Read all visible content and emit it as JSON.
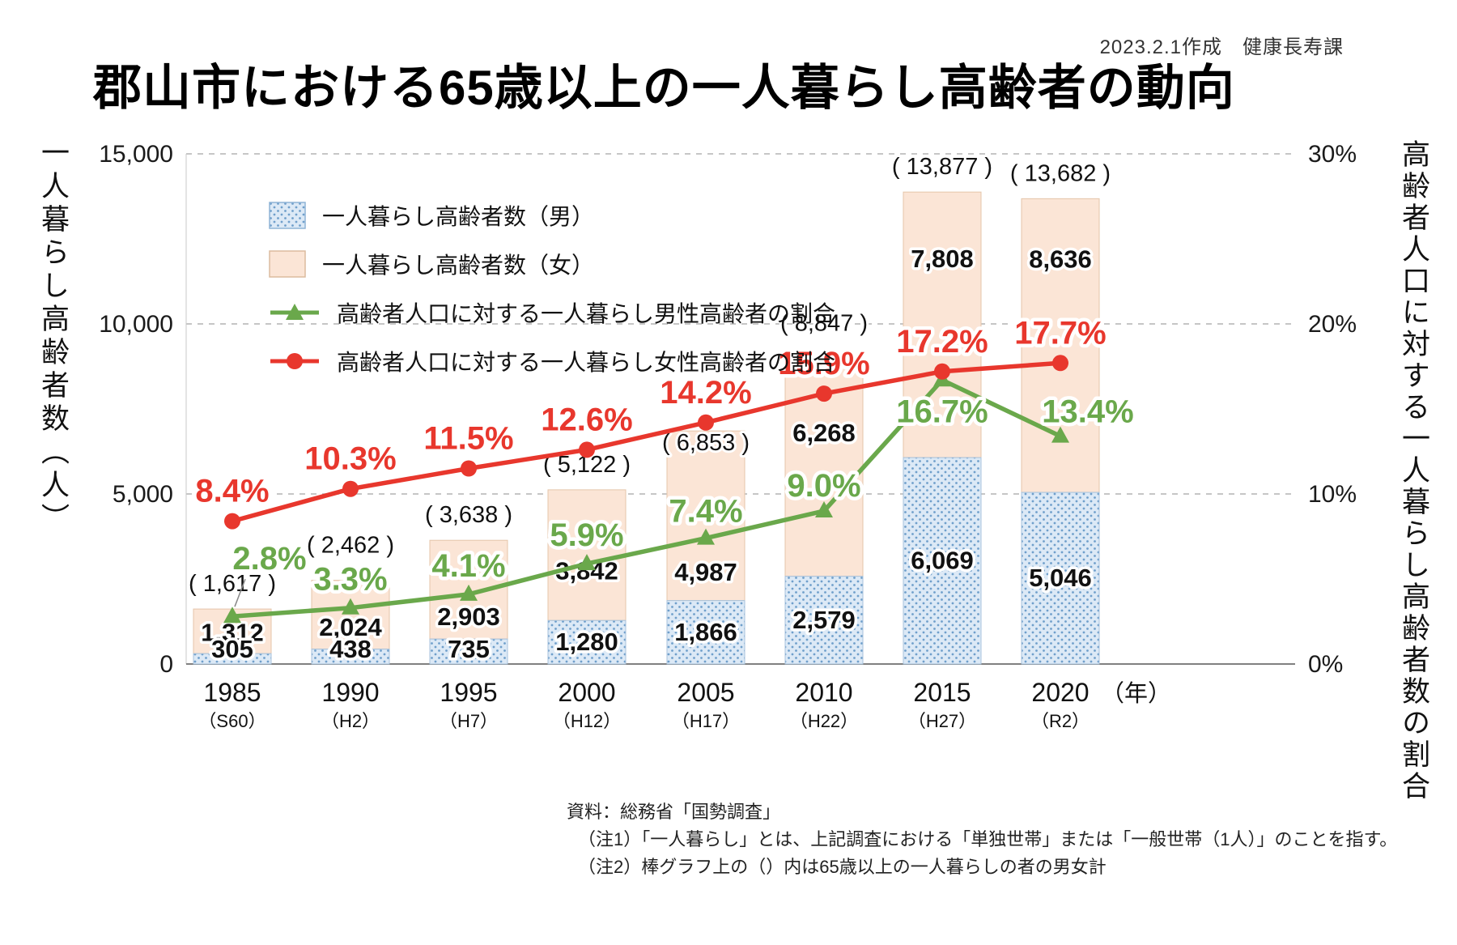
{
  "credit": "2023.2.1作成　健康長寿課",
  "title": "郡山市における65歳以上の一人暮らし高齢者の動向",
  "left_axis_title": "一人暮らし高齢者数（人）",
  "right_axis_title": "高齢者人口に対する一人暮らし高齢者数の割合",
  "year_unit": "（年）",
  "notes": {
    "source": "資料：総務省「国勢調査」",
    "note1": "（注1）「一人暮らし」とは、上記調査における「単独世帯」または「一般世帯（1人）」のことを指す。",
    "note2": "（注2）棒グラフ上の（）内は65歳以上の一人暮らしの者の男女計"
  },
  "chart_data": {
    "type": "bar",
    "subtype": "stacked-bars-with-percentage-lines",
    "title": "郡山市における65歳以上の一人暮らし高齢者の動向",
    "categories": [
      "1985",
      "1990",
      "1995",
      "2000",
      "2005",
      "2010",
      "2015",
      "2020"
    ],
    "category_era": [
      "（S60）",
      "（H2）",
      "（H7）",
      "（H12）",
      "（H17）",
      "（H22）",
      "（H27）",
      "（R2）"
    ],
    "series": [
      {
        "name": "一人暮らし高齢者数（男）",
        "type": "bar",
        "axis": "left",
        "stack_order": "bottom",
        "values": [
          305,
          438,
          735,
          1280,
          1866,
          2579,
          6069,
          5046
        ],
        "color": "#dce9f6",
        "pattern": "dots",
        "pattern_dot_color": "#6f9fcb",
        "border_color": "#a7c2dc"
      },
      {
        "name": "一人暮らし高齢者数（女）",
        "type": "bar",
        "axis": "left",
        "stack_order": "top",
        "values": [
          1312,
          2024,
          2903,
          3842,
          4987,
          6268,
          7808,
          8636
        ],
        "color": "#fbe5d6",
        "border_color": "#e4c5aa"
      },
      {
        "name": "高齢者人口に対する一人暮らし男性高齢者の割合",
        "type": "line",
        "axis": "right",
        "values": [
          2.8,
          3.3,
          4.1,
          5.9,
          7.4,
          9.0,
          16.7,
          13.4
        ],
        "color": "#6aa84b",
        "marker": "triangle"
      },
      {
        "name": "高齢者人口に対する一人暮らし女性高齢者の割合",
        "type": "line",
        "axis": "right",
        "values": [
          8.4,
          10.3,
          11.5,
          12.6,
          14.2,
          15.9,
          17.2,
          17.7
        ],
        "color": "#e8372d",
        "marker": "circle"
      }
    ],
    "totals": [
      1617,
      2462,
      3638,
      5122,
      6853,
      8847,
      13877,
      13682
    ],
    "left_axis": {
      "min": 0,
      "max": 15000,
      "ticks": [
        0,
        5000,
        10000,
        15000
      ],
      "labels": [
        "0",
        "5,000",
        "10,000",
        "15,000"
      ]
    },
    "right_axis": {
      "min": 0,
      "max": 30,
      "ticks": [
        0,
        10,
        20,
        30
      ],
      "labels": [
        "0%",
        "10%",
        "20%",
        "30%"
      ]
    },
    "grid": "horizontal-dashed",
    "legend_position": "top-left-inside",
    "label_offsets": {
      "male_pct": [
        [
          46,
          -58,
          1
        ],
        [
          0,
          -22,
          0
        ],
        [
          0,
          -22,
          0
        ],
        [
          0,
          -22,
          0
        ],
        [
          0,
          -20,
          0
        ],
        [
          0,
          -18,
          0
        ],
        [
          0,
          52,
          0
        ],
        [
          34,
          -17,
          0
        ]
      ],
      "female_pct_dy": -24,
      "female_bar_dy": [
        2,
        16,
        34,
        20,
        70,
        -45,
        -81,
        -106
      ],
      "totals_dy": [
        0,
        -12,
        0,
        0,
        46,
        -18,
        0,
        0
      ]
    }
  }
}
